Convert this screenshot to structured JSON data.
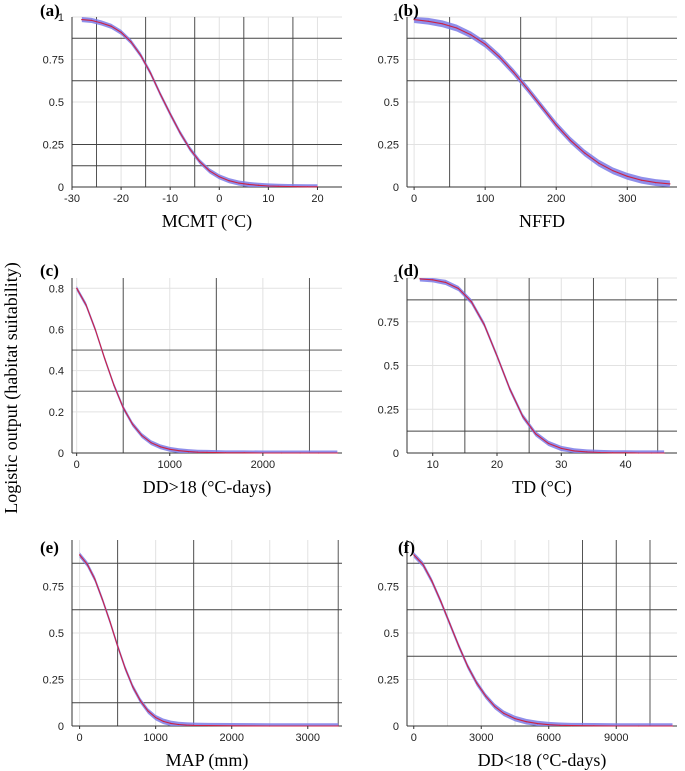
{
  "figure": {
    "ylabel": "Logistic output (habitat suitability)"
  },
  "chart_data": [
    {
      "type": "line",
      "panel": "(a)",
      "xlabel": "MCMT (°C)",
      "ylabel": "",
      "title": "",
      "xlim": [
        -30,
        25
      ],
      "ylim": [
        0,
        1
      ],
      "xticks": [
        -30,
        -20,
        -10,
        0,
        10,
        20
      ],
      "xtick_labels": [
        "-30",
        "-20",
        "-10",
        "0",
        "10",
        "20"
      ],
      "yticks": [
        0,
        0.25,
        0.5,
        0.75,
        1
      ],
      "ytick_labels": [
        "0",
        "0.25",
        "0.5",
        "0.75",
        "1"
      ],
      "hlines": [
        0.125,
        0.25,
        0.625,
        0.875
      ],
      "vlines": [
        -25,
        -15,
        -5,
        5,
        15
      ],
      "grid": true,
      "band_halfwidth": 0.015,
      "series": [
        {
          "color": "#cc2244",
          "x": [
            -28,
            -26,
            -24,
            -22,
            -20,
            -18,
            -16,
            -14,
            -12,
            -10,
            -8,
            -6,
            -4,
            -2,
            0,
            2,
            4,
            6,
            8,
            10,
            12,
            14,
            16,
            18,
            20
          ],
          "y": [
            0.985,
            0.98,
            0.965,
            0.945,
            0.91,
            0.855,
            0.775,
            0.67,
            0.545,
            0.43,
            0.32,
            0.225,
            0.15,
            0.095,
            0.06,
            0.037,
            0.023,
            0.015,
            0.01,
            0.006,
            0.004,
            0.003,
            0.002,
            0.001,
            0.001
          ]
        }
      ]
    },
    {
      "type": "line",
      "panel": "(b)",
      "xlabel": "NFFD",
      "ylabel": "",
      "title": "",
      "xlim": [
        -10,
        370
      ],
      "ylim": [
        0,
        1
      ],
      "xticks": [
        0,
        100,
        200,
        300
      ],
      "xtick_labels": [
        "0",
        "100",
        "200",
        "300"
      ],
      "yticks": [
        0,
        0.25,
        0.5,
        0.75,
        1
      ],
      "ytick_labels": [
        "0",
        "0.25",
        "0.5",
        "0.75",
        "1"
      ],
      "hlines": [
        0.875,
        0.625
      ],
      "vlines": [
        50,
        150
      ],
      "grid": true,
      "band_halfwidth": 0.02,
      "series": [
        {
          "color": "#cc2244",
          "x": [
            0,
            20,
            40,
            60,
            80,
            100,
            120,
            140,
            160,
            180,
            200,
            220,
            240,
            260,
            280,
            300,
            320,
            340,
            360
          ],
          "y": [
            0.985,
            0.975,
            0.96,
            0.935,
            0.895,
            0.84,
            0.765,
            0.675,
            0.575,
            0.47,
            0.365,
            0.275,
            0.2,
            0.14,
            0.095,
            0.063,
            0.04,
            0.026,
            0.018
          ]
        }
      ]
    },
    {
      "type": "line",
      "panel": "(c)",
      "xlabel": "DD>18 (°C-days)",
      "ylabel": "",
      "title": "",
      "xlim": [
        -50,
        2850
      ],
      "ylim": [
        0,
        0.85
      ],
      "xticks": [
        0,
        1000,
        2000
      ],
      "xtick_labels": [
        "0",
        "1000",
        "2000"
      ],
      "yticks": [
        0,
        0.2,
        0.4,
        0.6,
        0.8
      ],
      "ytick_labels": [
        "0",
        "0.2",
        "0.4",
        "0.6",
        "0.8"
      ],
      "hlines": [
        0.3,
        0.5
      ],
      "vlines": [
        500,
        1500,
        2500
      ],
      "grid": true,
      "band_halfwidth": 0.012,
      "series": [
        {
          "color": "#cc2244",
          "x": [
            0,
            100,
            200,
            300,
            400,
            500,
            600,
            700,
            800,
            900,
            1000,
            1100,
            1200,
            1300,
            1400,
            1500,
            1600,
            1800,
            2000,
            2200,
            2400,
            2600,
            2800
          ],
          "y": [
            0.8,
            0.72,
            0.6,
            0.46,
            0.33,
            0.22,
            0.14,
            0.085,
            0.05,
            0.03,
            0.018,
            0.011,
            0.007,
            0.004,
            0.003,
            0.002,
            0.001,
            0.001,
            0,
            0,
            0,
            0,
            0
          ]
        }
      ]
    },
    {
      "type": "line",
      "panel": "(d)",
      "xlabel": "TD (°C)",
      "ylabel": "",
      "title": "",
      "xlim": [
        6,
        48
      ],
      "ylim": [
        0,
        1
      ],
      "xticks": [
        10,
        20,
        30,
        40
      ],
      "xtick_labels": [
        "10",
        "20",
        "30",
        "40"
      ],
      "yticks": [
        0,
        0.25,
        0.5,
        0.75,
        1
      ],
      "ytick_labels": [
        "0",
        "0.25",
        "0.5",
        "0.75",
        "1"
      ],
      "hlines": [
        0.875,
        0.125
      ],
      "vlines": [
        15,
        25,
        35,
        45
      ],
      "grid": true,
      "band_halfwidth": 0.015,
      "series": [
        {
          "color": "#cc2244",
          "x": [
            8,
            10,
            12,
            14,
            16,
            18,
            20,
            22,
            24,
            26,
            28,
            30,
            32,
            34,
            36,
            38,
            40,
            42,
            44,
            46
          ],
          "y": [
            0.995,
            0.99,
            0.975,
            0.94,
            0.865,
            0.735,
            0.555,
            0.365,
            0.21,
            0.11,
            0.055,
            0.026,
            0.012,
            0.006,
            0.003,
            0.001,
            0.001,
            0,
            0,
            0
          ]
        }
      ]
    },
    {
      "type": "line",
      "panel": "(e)",
      "xlabel": "MAP (mm)",
      "ylabel": "",
      "title": "",
      "xlim": [
        -100,
        3450
      ],
      "ylim": [
        0,
        1
      ],
      "xticks": [
        0,
        1000,
        2000,
        3000
      ],
      "xtick_labels": [
        "0",
        "1000",
        "2000",
        "3000"
      ],
      "yticks": [
        0,
        0.25,
        0.5,
        0.75
      ],
      "ytick_labels": [
        "0",
        "0.25",
        "0.5",
        "0.75"
      ],
      "hlines": [
        0.125,
        0.625,
        0.875
      ],
      "vlines": [
        500,
        1500,
        3400
      ],
      "grid": true,
      "band_halfwidth": 0.015,
      "series": [
        {
          "color": "#cc2244",
          "x": [
            0,
            100,
            200,
            300,
            400,
            500,
            600,
            700,
            800,
            900,
            1000,
            1100,
            1200,
            1300,
            1400,
            1500,
            1700,
            2000,
            2500,
            3000,
            3400
          ],
          "y": [
            0.92,
            0.87,
            0.79,
            0.68,
            0.56,
            0.43,
            0.31,
            0.21,
            0.135,
            0.08,
            0.045,
            0.025,
            0.014,
            0.008,
            0.005,
            0.003,
            0.002,
            0.001,
            0,
            0,
            0
          ]
        }
      ]
    },
    {
      "type": "line",
      "panel": "(f)",
      "xlabel": "DD<18 (°C-days)",
      "ylabel": "",
      "title": "",
      "xlim": [
        -300,
        11700
      ],
      "ylim": [
        0,
        1
      ],
      "xticks": [
        0,
        3000,
        6000,
        9000
      ],
      "xtick_labels": [
        "0",
        "3000",
        "6000",
        "9000"
      ],
      "yticks": [
        0,
        0.25,
        0.5,
        0.75
      ],
      "ytick_labels": [
        "0",
        "0.25",
        "0.5",
        "0.75"
      ],
      "hlines": [
        0.375,
        0.625,
        0.875
      ],
      "vlines": [
        7500,
        9000,
        10500
      ],
      "grid": true,
      "band_halfwidth": 0.015,
      "series": [
        {
          "color": "#cc2244",
          "x": [
            0,
            400,
            800,
            1200,
            1600,
            2000,
            2400,
            2800,
            3200,
            3600,
            4000,
            4500,
            5000,
            5500,
            6000,
            6500,
            7000,
            8000,
            9000,
            10000,
            11500
          ],
          "y": [
            0.92,
            0.87,
            0.78,
            0.67,
            0.55,
            0.43,
            0.32,
            0.23,
            0.16,
            0.105,
            0.068,
            0.04,
            0.023,
            0.013,
            0.007,
            0.004,
            0.002,
            0.001,
            0,
            0,
            0
          ]
        }
      ]
    }
  ]
}
